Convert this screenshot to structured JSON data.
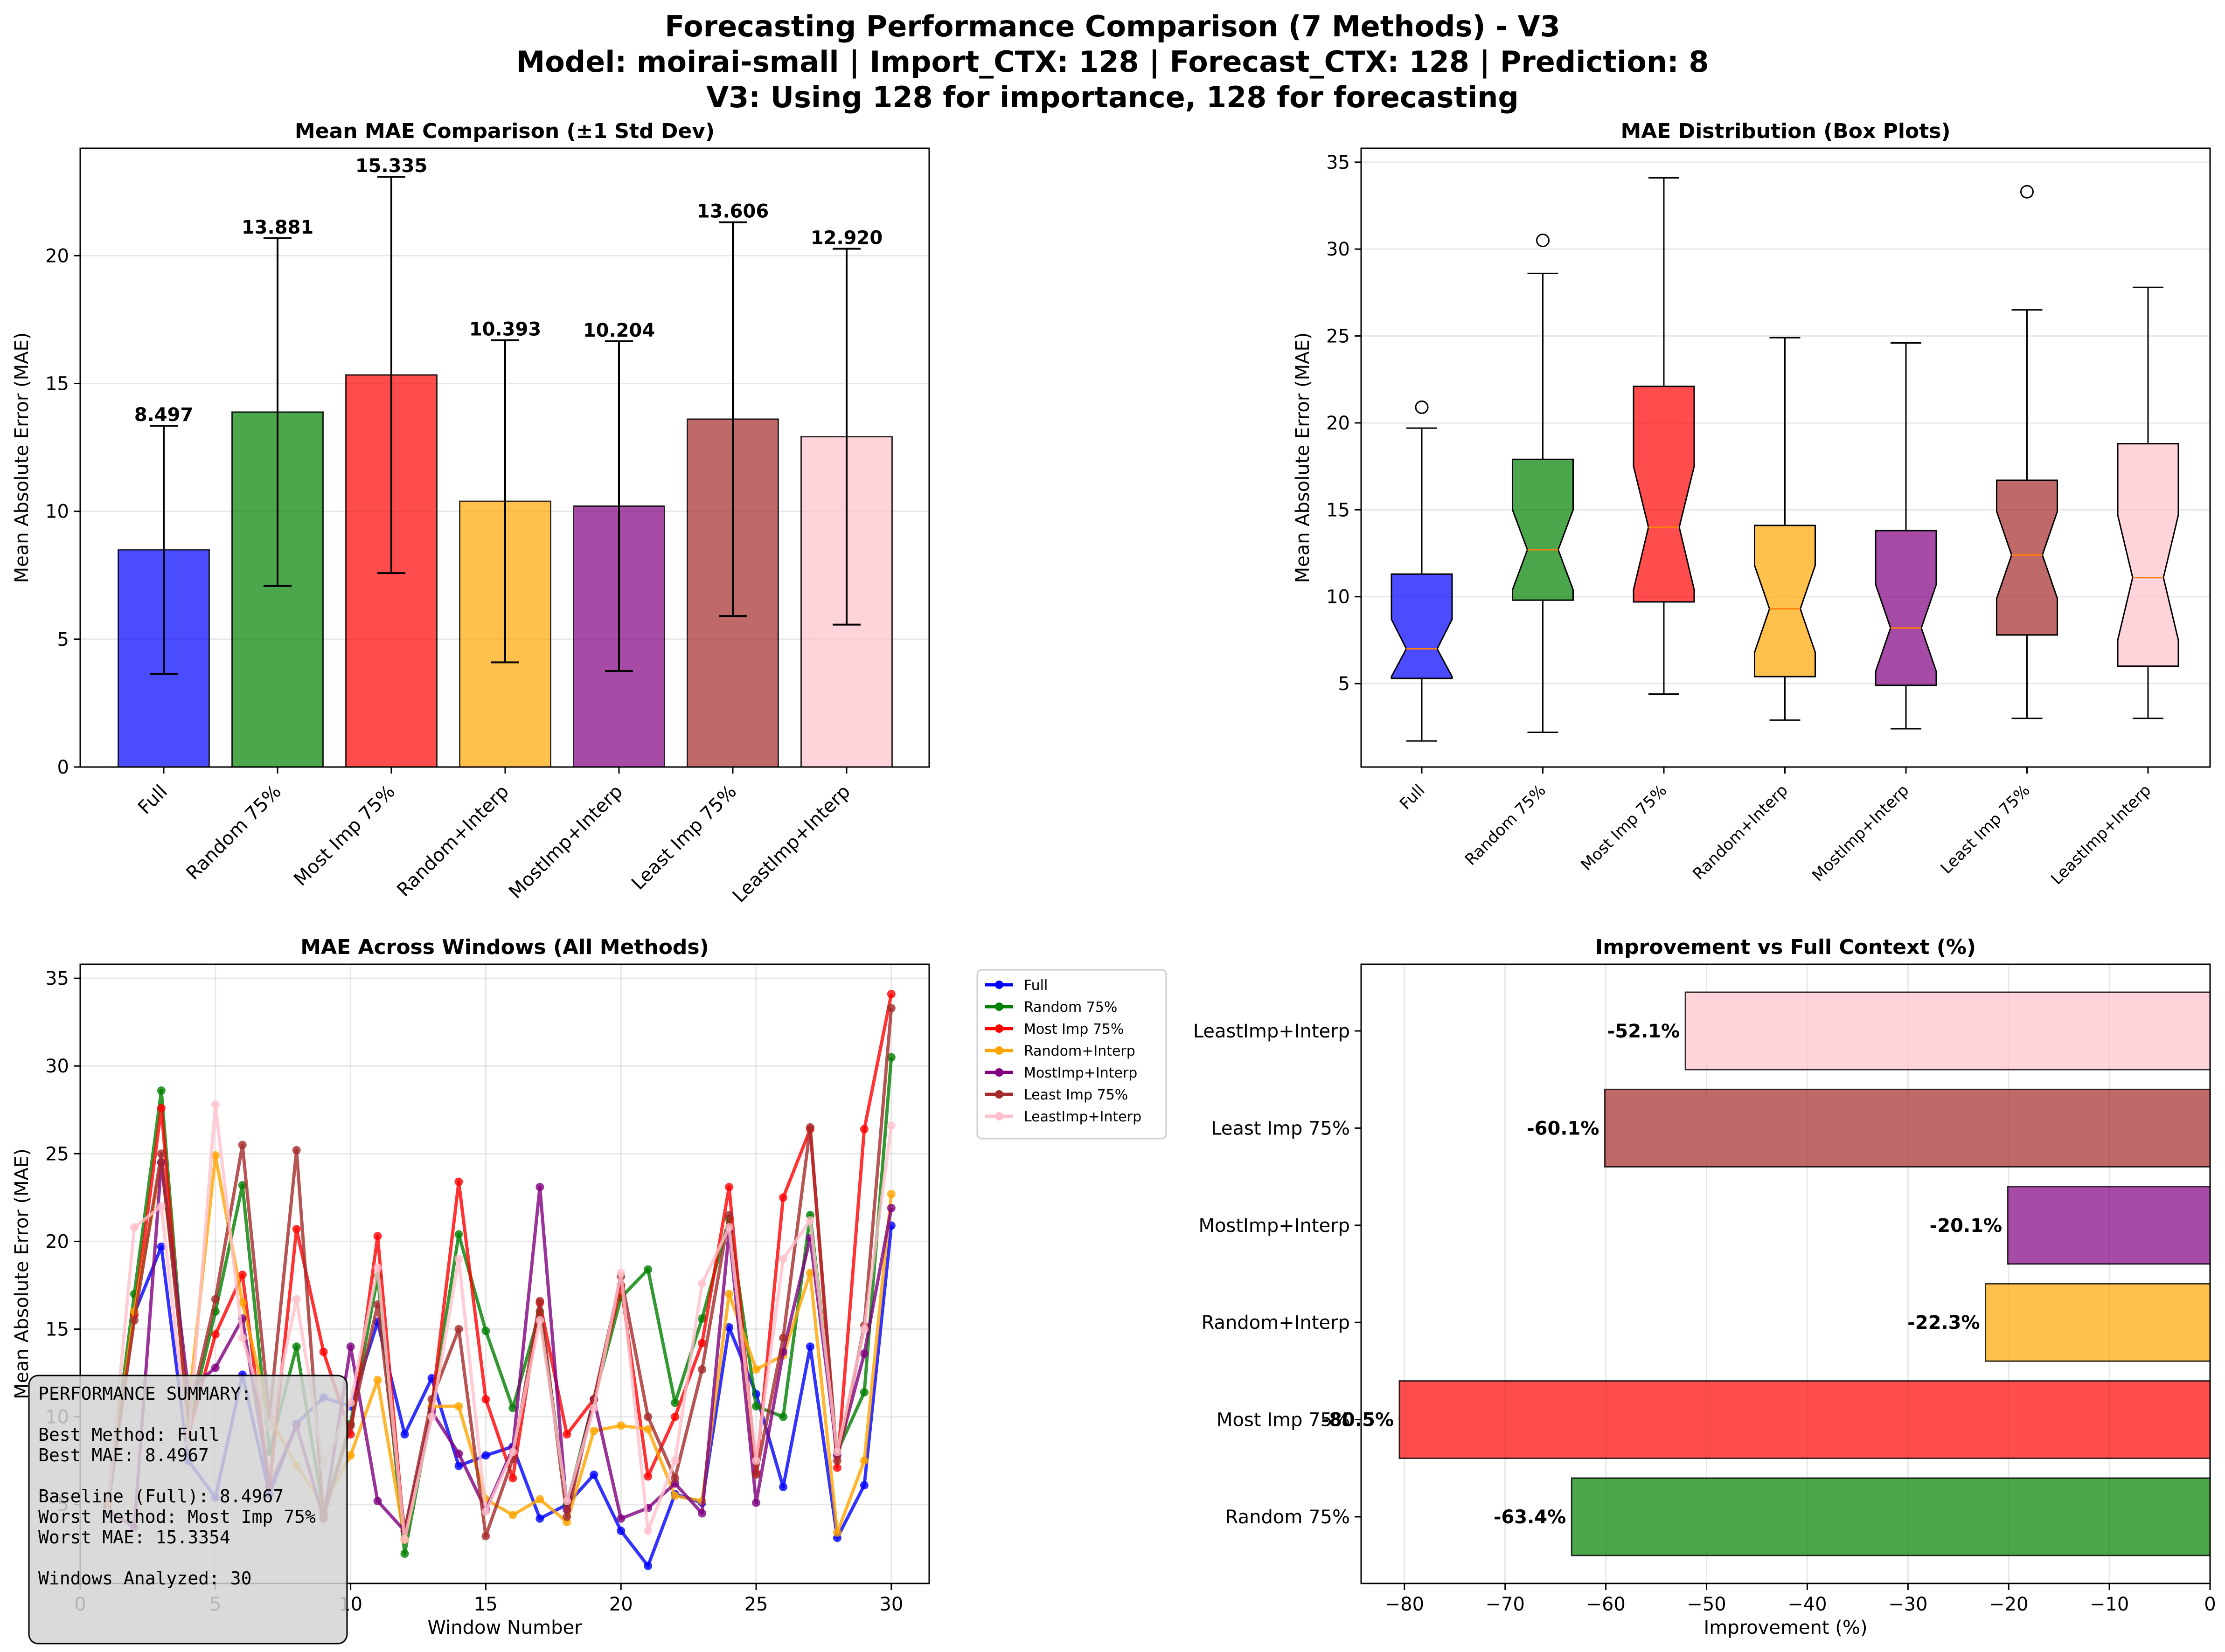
{
  "figure": {
    "title_lines": [
      "Forecasting Performance Comparison (7 Methods) - V3",
      "Model: moirai-small | Import_CTX: 128 | Forecast_CTX: 128 | Prediction: 8",
      "V3: Using 128 for importance, 128 for forecasting"
    ]
  },
  "colors": {
    "Full": "#0000ff",
    "Random 75%": "#008000",
    "Most Imp 75%": "#ff0000",
    "Random+Interp": "#ffa500",
    "MostImp+Interp": "#800080",
    "Least Imp 75%": "#a52a2a",
    "LeastImp+Interp": "#ffc0cb"
  },
  "chart_data": [
    {
      "id": "mean_mae",
      "type": "bar",
      "title": "Mean MAE Comparison (±1 Std Dev)",
      "ylabel": "Mean Absolute Error (MAE)",
      "xlabel": "",
      "categories": [
        "Full",
        "Random 75%",
        "Most Imp 75%",
        "Random+Interp",
        "MostImp+Interp",
        "Least Imp 75%",
        "LeastImp+Interp"
      ],
      "values": [
        8.497,
        13.881,
        15.335,
        10.393,
        10.204,
        13.606,
        12.92
      ],
      "value_labels": [
        "8.497",
        "13.881",
        "15.335",
        "10.393",
        "10.204",
        "13.606",
        "12.920"
      ],
      "std": [
        4.85,
        6.8,
        7.75,
        6.3,
        6.45,
        7.7,
        7.35
      ],
      "ylim": [
        0,
        24.2
      ],
      "yticks": [
        0,
        5,
        10,
        15,
        20
      ],
      "grid": true
    },
    {
      "id": "boxplot",
      "type": "box",
      "title": "MAE Distribution (Box Plots)",
      "ylabel": "Mean Absolute Error (MAE)",
      "categories": [
        "Full",
        "Random 75%",
        "Most Imp 75%",
        "Random+Interp",
        "MostImp+Interp",
        "Least Imp 75%",
        "LeastImp+Interp"
      ],
      "boxes": [
        {
          "whislo": 1.7,
          "q1": 5.3,
          "med": 7.0,
          "q3": 11.3,
          "whishi": 19.7,
          "notch_lo": 5.4,
          "notch_hi": 8.7,
          "fliers": [
            20.9
          ]
        },
        {
          "whislo": 2.2,
          "q1": 9.8,
          "med": 12.7,
          "q3": 17.9,
          "whishi": 28.6,
          "notch_lo": 10.4,
          "notch_hi": 15.0,
          "fliers": [
            30.5
          ]
        },
        {
          "whislo": 4.4,
          "q1": 9.7,
          "med": 14.0,
          "q3": 22.1,
          "whishi": 34.1,
          "notch_lo": 10.4,
          "notch_hi": 17.5,
          "fliers": []
        },
        {
          "whislo": 2.9,
          "q1": 5.4,
          "med": 9.3,
          "q3": 14.1,
          "whishi": 24.9,
          "notch_lo": 6.8,
          "notch_hi": 11.8,
          "fliers": []
        },
        {
          "whislo": 2.4,
          "q1": 4.9,
          "med": 8.2,
          "q3": 13.8,
          "whishi": 24.6,
          "notch_lo": 5.7,
          "notch_hi": 10.7,
          "fliers": []
        },
        {
          "whislo": 3.0,
          "q1": 7.8,
          "med": 12.4,
          "q3": 16.7,
          "whishi": 26.5,
          "notch_lo": 9.9,
          "notch_hi": 14.9,
          "fliers": [
            33.3
          ]
        },
        {
          "whislo": 3.0,
          "q1": 6.0,
          "med": 11.1,
          "q3": 18.8,
          "whishi": 27.8,
          "notch_lo": 7.5,
          "notch_hi": 14.7,
          "fliers": []
        }
      ],
      "ylim": [
        0.2,
        35.8
      ],
      "yticks": [
        5,
        10,
        15,
        20,
        25,
        30,
        35
      ],
      "grid": true
    },
    {
      "id": "windows",
      "type": "line",
      "title": "MAE Across Windows (All Methods)",
      "xlabel": "Window Number",
      "ylabel": "Mean Absolute Error (MAE)",
      "x": [
        1,
        2,
        3,
        4,
        5,
        6,
        7,
        8,
        9,
        10,
        11,
        12,
        13,
        14,
        15,
        16,
        17,
        18,
        19,
        20,
        21,
        22,
        23,
        24,
        25,
        26,
        27,
        28,
        29,
        30
      ],
      "series": [
        {
          "name": "Full",
          "values": [
            4.5,
            15.9,
            19.7,
            7.5,
            5.4,
            12.4,
            5.6,
            9.6,
            11.1,
            10.6,
            15.4,
            9.0,
            12.2,
            7.2,
            7.8,
            8.3,
            4.2,
            5.0,
            6.7,
            3.5,
            1.5,
            5.6,
            5.1,
            15.1,
            11.3,
            6.0,
            14.0,
            3.1,
            6.1,
            20.9
          ]
        },
        {
          "name": "Random 75%",
          "values": [
            5.0,
            17.0,
            28.6,
            9.5,
            16.0,
            23.2,
            8.0,
            14.0,
            4.5,
            9.6,
            18.0,
            2.2,
            10.5,
            20.4,
            14.9,
            10.5,
            16.0,
            5.0,
            11.0,
            16.8,
            18.4,
            10.8,
            15.6,
            21.3,
            10.6,
            10.0,
            21.5,
            8.0,
            11.4,
            30.5
          ]
        },
        {
          "name": "Most Imp 75%",
          "values": [
            5.0,
            15.8,
            27.6,
            9.0,
            14.7,
            18.1,
            6.0,
            20.7,
            13.7,
            9.0,
            20.3,
            3.0,
            10.5,
            23.4,
            11.0,
            6.5,
            16.5,
            9.0,
            11.0,
            17.5,
            6.6,
            10.0,
            14.2,
            23.1,
            6.8,
            22.5,
            26.4,
            7.1,
            26.4,
            34.1
          ]
        },
        {
          "name": "Random+Interp",
          "values": [
            4.9,
            16.0,
            24.5,
            10.5,
            24.9,
            16.5,
            10.0,
            7.2,
            5.0,
            7.8,
            12.1,
            3.0,
            10.6,
            10.6,
            5.3,
            4.4,
            5.3,
            4.0,
            9.2,
            9.5,
            9.3,
            5.5,
            5.2,
            17.0,
            12.7,
            13.5,
            18.2,
            3.4,
            7.5,
            22.7
          ]
        },
        {
          "name": "MostImp+Interp",
          "values": [
            4.7,
            3.7,
            24.5,
            11.5,
            12.8,
            15.6,
            6.0,
            9.5,
            4.2,
            14.0,
            5.2,
            3.5,
            10.3,
            7.9,
            4.7,
            8.2,
            23.1,
            4.7,
            11.0,
            4.2,
            4.8,
            6.2,
            4.5,
            20.6,
            5.1,
            13.7,
            20.2,
            7.8,
            13.6,
            21.9
          ]
        },
        {
          "name": "Least Imp 75%",
          "values": [
            4.8,
            15.5,
            25.0,
            10.0,
            16.7,
            25.5,
            10.0,
            25.2,
            4.3,
            9.5,
            16.4,
            3.5,
            11.0,
            15.0,
            3.2,
            7.6,
            16.6,
            4.3,
            11.0,
            18.0,
            10.0,
            6.5,
            12.7,
            21.5,
            6.7,
            14.5,
            26.5,
            7.5,
            15.2,
            33.3
          ]
        },
        {
          "name": "LeastImp+Interp",
          "values": [
            4.6,
            20.8,
            22.0,
            8.5,
            27.8,
            14.5,
            9.4,
            16.7,
            7.2,
            10.8,
            18.5,
            3.0,
            10.0,
            19.0,
            4.6,
            8.0,
            15.5,
            5.2,
            10.5,
            18.2,
            3.5,
            7.5,
            17.6,
            20.8,
            7.5,
            19.0,
            21.2,
            8.0,
            15.0,
            26.6
          ]
        }
      ],
      "xlim": [
        0.0,
        31.4
      ],
      "ylim": [
        0.5,
        35.8
      ],
      "xticks": [
        0,
        5,
        10,
        15,
        20,
        25,
        30
      ],
      "xtick_labels": [
        "0",
        "5",
        "10",
        "15",
        "20",
        "25",
        "30"
      ],
      "yticks": [
        5,
        10,
        15,
        20,
        25,
        30,
        35
      ],
      "grid": true,
      "legend_position": "outside-right"
    },
    {
      "id": "improvement",
      "type": "bar",
      "orientation": "horizontal",
      "title": "Improvement vs Full Context (%)",
      "xlabel": "Improvement (%)",
      "categories": [
        "Random 75%",
        "Most Imp 75%",
        "Random+Interp",
        "MostImp+Interp",
        "Least Imp 75%",
        "LeastImp+Interp"
      ],
      "values": [
        -63.4,
        -80.5,
        -22.3,
        -20.1,
        -60.1,
        -52.1
      ],
      "value_labels": [
        "-63.4%",
        "-80.5%",
        "-22.3%",
        "-20.1%",
        "-60.1%",
        "-52.1%"
      ],
      "xlim": [
        -84.3,
        0
      ],
      "xticks": [
        -80,
        -70,
        -60,
        -50,
        -40,
        -30,
        -20,
        -10,
        0
      ],
      "grid": true
    }
  ],
  "summary": {
    "lines": [
      "PERFORMANCE SUMMARY:",
      "",
      "Best Method: Full",
      "Best MAE: 8.4967",
      "",
      "Baseline (Full): 8.4967",
      "Worst Method: Most Imp 75%",
      "Worst MAE: 15.3354",
      "",
      "Windows Analyzed: 30"
    ]
  }
}
